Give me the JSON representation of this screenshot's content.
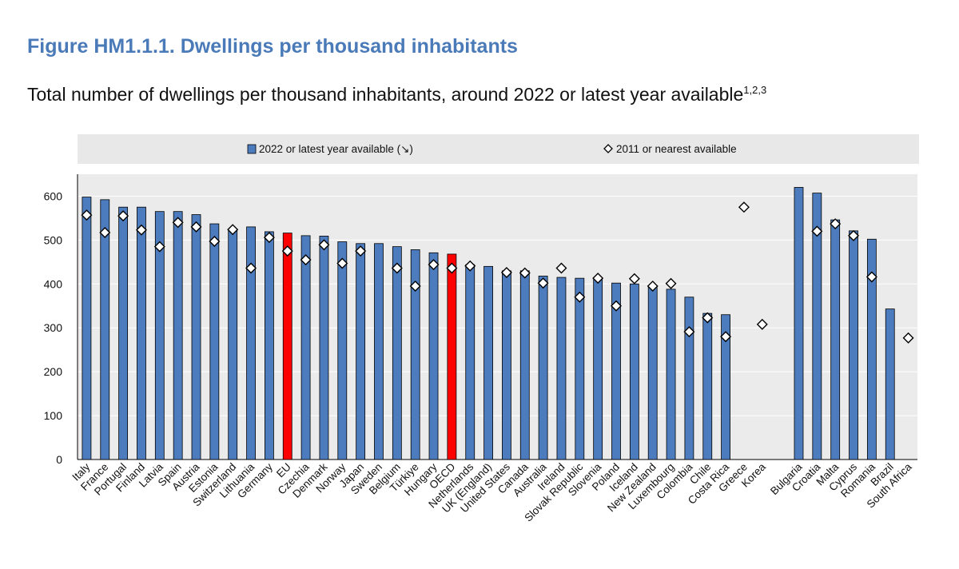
{
  "title": "Figure HM1.1.1. Dwellings per thousand inhabitants",
  "subtitle": "Total number of dwellings per thousand inhabitants, around 2022 or latest year available",
  "subtitle_notes": "1,2,3",
  "colors": {
    "title": "#4a7ab8",
    "bar": "#4c7cbd",
    "bar_highlight": "#ff0000",
    "legend_bg": "#e8e8e8",
    "grid": "#ffffff",
    "plot_bg": "#ebebeb"
  },
  "chart_data": {
    "type": "bar",
    "title": "Figure HM1.1.1. Dwellings per thousand inhabitants",
    "xlabel": "",
    "ylabel": "",
    "ylim": [
      0,
      650
    ],
    "yticks": [
      0,
      100,
      200,
      300,
      400,
      500,
      600
    ],
    "legend": {
      "position": "top",
      "series_bar_label": "2022 or latest year available (↘)",
      "series_marker_label": "2011 or nearest available"
    },
    "highlight": [
      "EU",
      "OECD"
    ],
    "categories": [
      "Italy",
      "France",
      "Portugal",
      "Finland",
      "Latvia",
      "Spain",
      "Austria",
      "Estonia",
      "Switzerland",
      "Lithuania",
      "Germany",
      "EU",
      "Czechia",
      "Denmark",
      "Norway",
      "Japan",
      "Sweden",
      "Belgium",
      "Türkiye",
      "Hungary",
      "OECD",
      "Netherlands",
      "UK (England)",
      "United States",
      "Canada",
      "Australia",
      "Ireland",
      "Slovak Republic",
      "Slovenia",
      "Poland",
      "Iceland",
      "New Zealand",
      "Luxembourg",
      "Colombia",
      "Chile",
      "Costa Rica",
      "Greece",
      "Korea",
      "",
      "Bulgaria",
      "Croatia",
      "Malta",
      "Cyprus",
      "Romania",
      "Brazil",
      "South Africa"
    ],
    "series": [
      {
        "name": "2022 or latest year available (↘)",
        "type": "bar",
        "values": [
          598,
          592,
          575,
          575,
          565,
          565,
          558,
          537,
          525,
          530,
          519,
          516,
          510,
          509,
          496,
          492,
          492,
          485,
          478,
          471,
          468,
          444,
          440,
          430,
          430,
          418,
          415,
          413,
          410,
          402,
          400,
          396,
          388,
          370,
          333,
          330,
          null,
          null,
          null,
          620,
          607,
          546,
          521,
          502,
          343,
          null
        ]
      },
      {
        "name": "2011 or nearest available",
        "type": "marker",
        "values": [
          557,
          517,
          555,
          523,
          485,
          540,
          530,
          497,
          524,
          436,
          506,
          475,
          455,
          489,
          447,
          475,
          null,
          436,
          395,
          444,
          436,
          441,
          null,
          426,
          425,
          402,
          436,
          370,
          413,
          350,
          412,
          395,
          401,
          291,
          323,
          280,
          575,
          308,
          null,
          null,
          520,
          537,
          510,
          416,
          null,
          277
        ]
      }
    ]
  }
}
